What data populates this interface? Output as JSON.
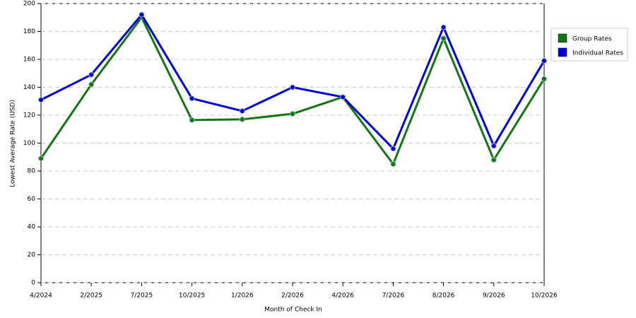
{
  "chart_data": {
    "type": "line",
    "x_label": "Month of Check In",
    "y_label": "Lowest Average Rate (USD)",
    "categories": [
      "4/2024",
      "2/2025",
      "7/2025",
      "10/2025",
      "1/2026",
      "2/2026",
      "4/2026",
      "7/2026",
      "8/2026",
      "9/2026",
      "10/2026"
    ],
    "series": [
      {
        "name": "Group Rates",
        "color": "#117711",
        "values": [
          89,
          142,
          190,
          116.5,
          117,
          121,
          133,
          85,
          175,
          88,
          146
        ]
      },
      {
        "name": "Individual Rates",
        "color": "#0000dd",
        "values": [
          131,
          149,
          192,
          132,
          123,
          140,
          133,
          96,
          183,
          98,
          159
        ]
      }
    ],
    "ylim": [
      0,
      200
    ],
    "yticks": [
      0,
      20,
      40,
      60,
      80,
      100,
      120,
      140,
      160,
      180,
      200
    ],
    "grid": true,
    "legend": "right"
  }
}
